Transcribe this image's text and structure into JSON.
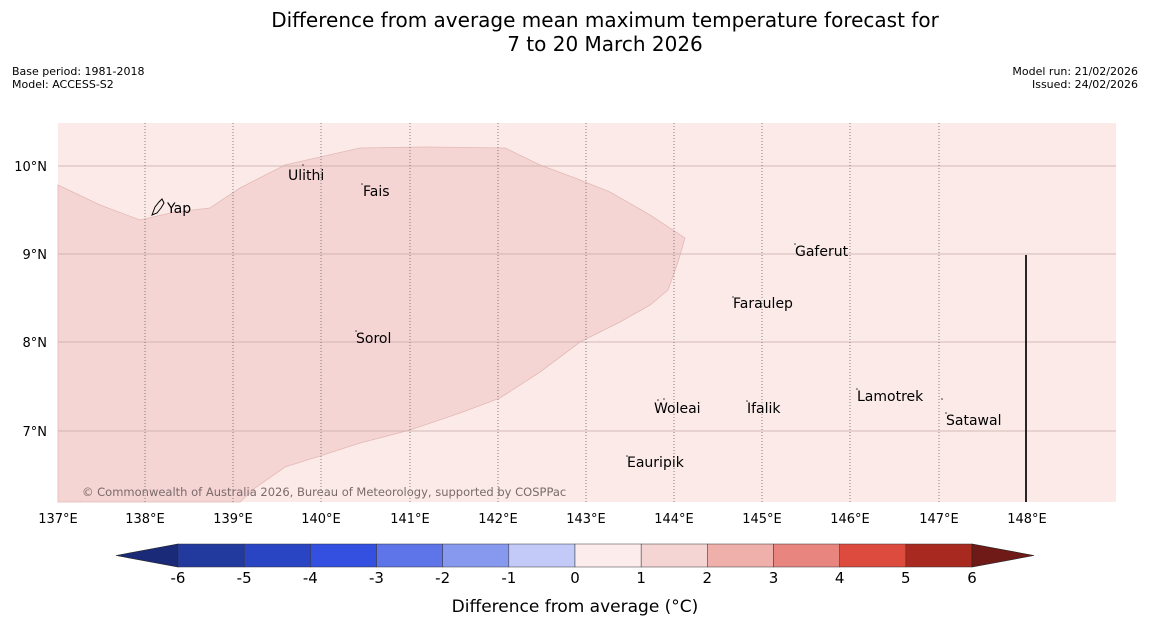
{
  "title": {
    "line1": "Difference from average mean maximum temperature forecast for",
    "line2": "7 to 20 March 2026"
  },
  "meta_left": {
    "base_period": "Base period: 1981-2018",
    "model": "Model: ACCESS-S2"
  },
  "meta_right": {
    "model_run": "Model run: 21/02/2026",
    "issued": "Issued: 24/02/2026"
  },
  "map": {
    "lon_ticks": [
      "137°E",
      "138°E",
      "139°E",
      "140°E",
      "141°E",
      "142°E",
      "143°E",
      "144°E",
      "145°E",
      "146°E",
      "147°E",
      "148°E"
    ],
    "lat_ticks": [
      "10°N",
      "9°N",
      "8°N",
      "7°N"
    ],
    "places": {
      "yap": "Yap",
      "ulithi": "Ulithi",
      "fais": "Fais",
      "sorol": "Sorol",
      "gaferut": "Gaferut",
      "faraulep": "Faraulep",
      "woleai": "Woleai",
      "ifalik": "Ifalik",
      "lamotrek": "Lamotrek",
      "satawal": "Satawal",
      "eauripik": "Eauripik"
    },
    "copyright": "© Commonwealth of Australia 2026, Bureau of Meteorology, supported by COSPPac",
    "colors": {
      "anomaly_0_1": "#fbeae8",
      "anomaly_1_2": "#f5d5d3"
    }
  },
  "colorbar": {
    "ticks": [
      "-6",
      "-5",
      "-4",
      "-3",
      "-2",
      "-1",
      "0",
      "1",
      "2",
      "3",
      "4",
      "5",
      "6"
    ],
    "label": "Difference from average (°C)",
    "colors": [
      "#223a9e",
      "#2a45c4",
      "#3350e0",
      "#5d75e8",
      "#8799ee",
      "#c3caf7",
      "#e8ebfc",
      "#fdecec",
      "#f5d5d3",
      "#efb0ab",
      "#e8857f",
      "#dd4b3e",
      "#a7291f"
    ],
    "under_color": "#1a2a78",
    "over_color": "#6f1a16"
  }
}
